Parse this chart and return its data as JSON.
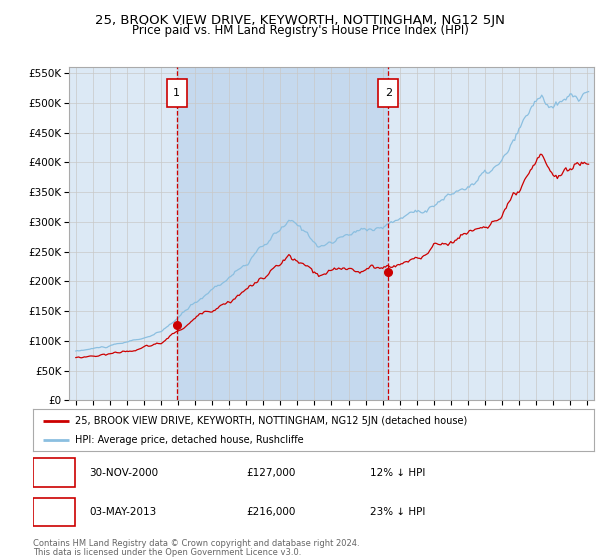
{
  "title": "25, BROOK VIEW DRIVE, KEYWORTH, NOTTINGHAM, NG12 5JN",
  "subtitle": "Price paid vs. HM Land Registry's House Price Index (HPI)",
  "legend_line1": "25, BROOK VIEW DRIVE, KEYWORTH, NOTTINGHAM, NG12 5JN (detached house)",
  "legend_line2": "HPI: Average price, detached house, Rushcliffe",
  "transaction1": {
    "label": "1",
    "date": "30-NOV-2000",
    "price": 127000,
    "hpi_pct": "12% ↓ HPI",
    "x_year": 2000.92
  },
  "transaction2": {
    "label": "2",
    "date": "03-MAY-2013",
    "price": 216000,
    "hpi_pct": "23% ↓ HPI",
    "x_year": 2013.33
  },
  "footer_line1": "Contains HM Land Registry data © Crown copyright and database right 2024.",
  "footer_line2": "This data is licensed under the Open Government Licence v3.0.",
  "ylim": [
    0,
    560000
  ],
  "xlim_start": 1994.6,
  "xlim_end": 2025.4,
  "yticks": [
    0,
    50000,
    100000,
    150000,
    200000,
    250000,
    300000,
    350000,
    400000,
    450000,
    500000,
    550000
  ],
  "background_color": "#ffffff",
  "plot_bg_color": "#dce9f5",
  "shaded_region_color": "#c5d9ee",
  "grid_color": "#c8c8c8",
  "hpi_line_color": "#8bbfe0",
  "price_line_color": "#cc0000",
  "dashed_line_color": "#cc0000",
  "dot_color": "#cc0000",
  "title_fontsize": 9.5,
  "subtitle_fontsize": 8.5
}
